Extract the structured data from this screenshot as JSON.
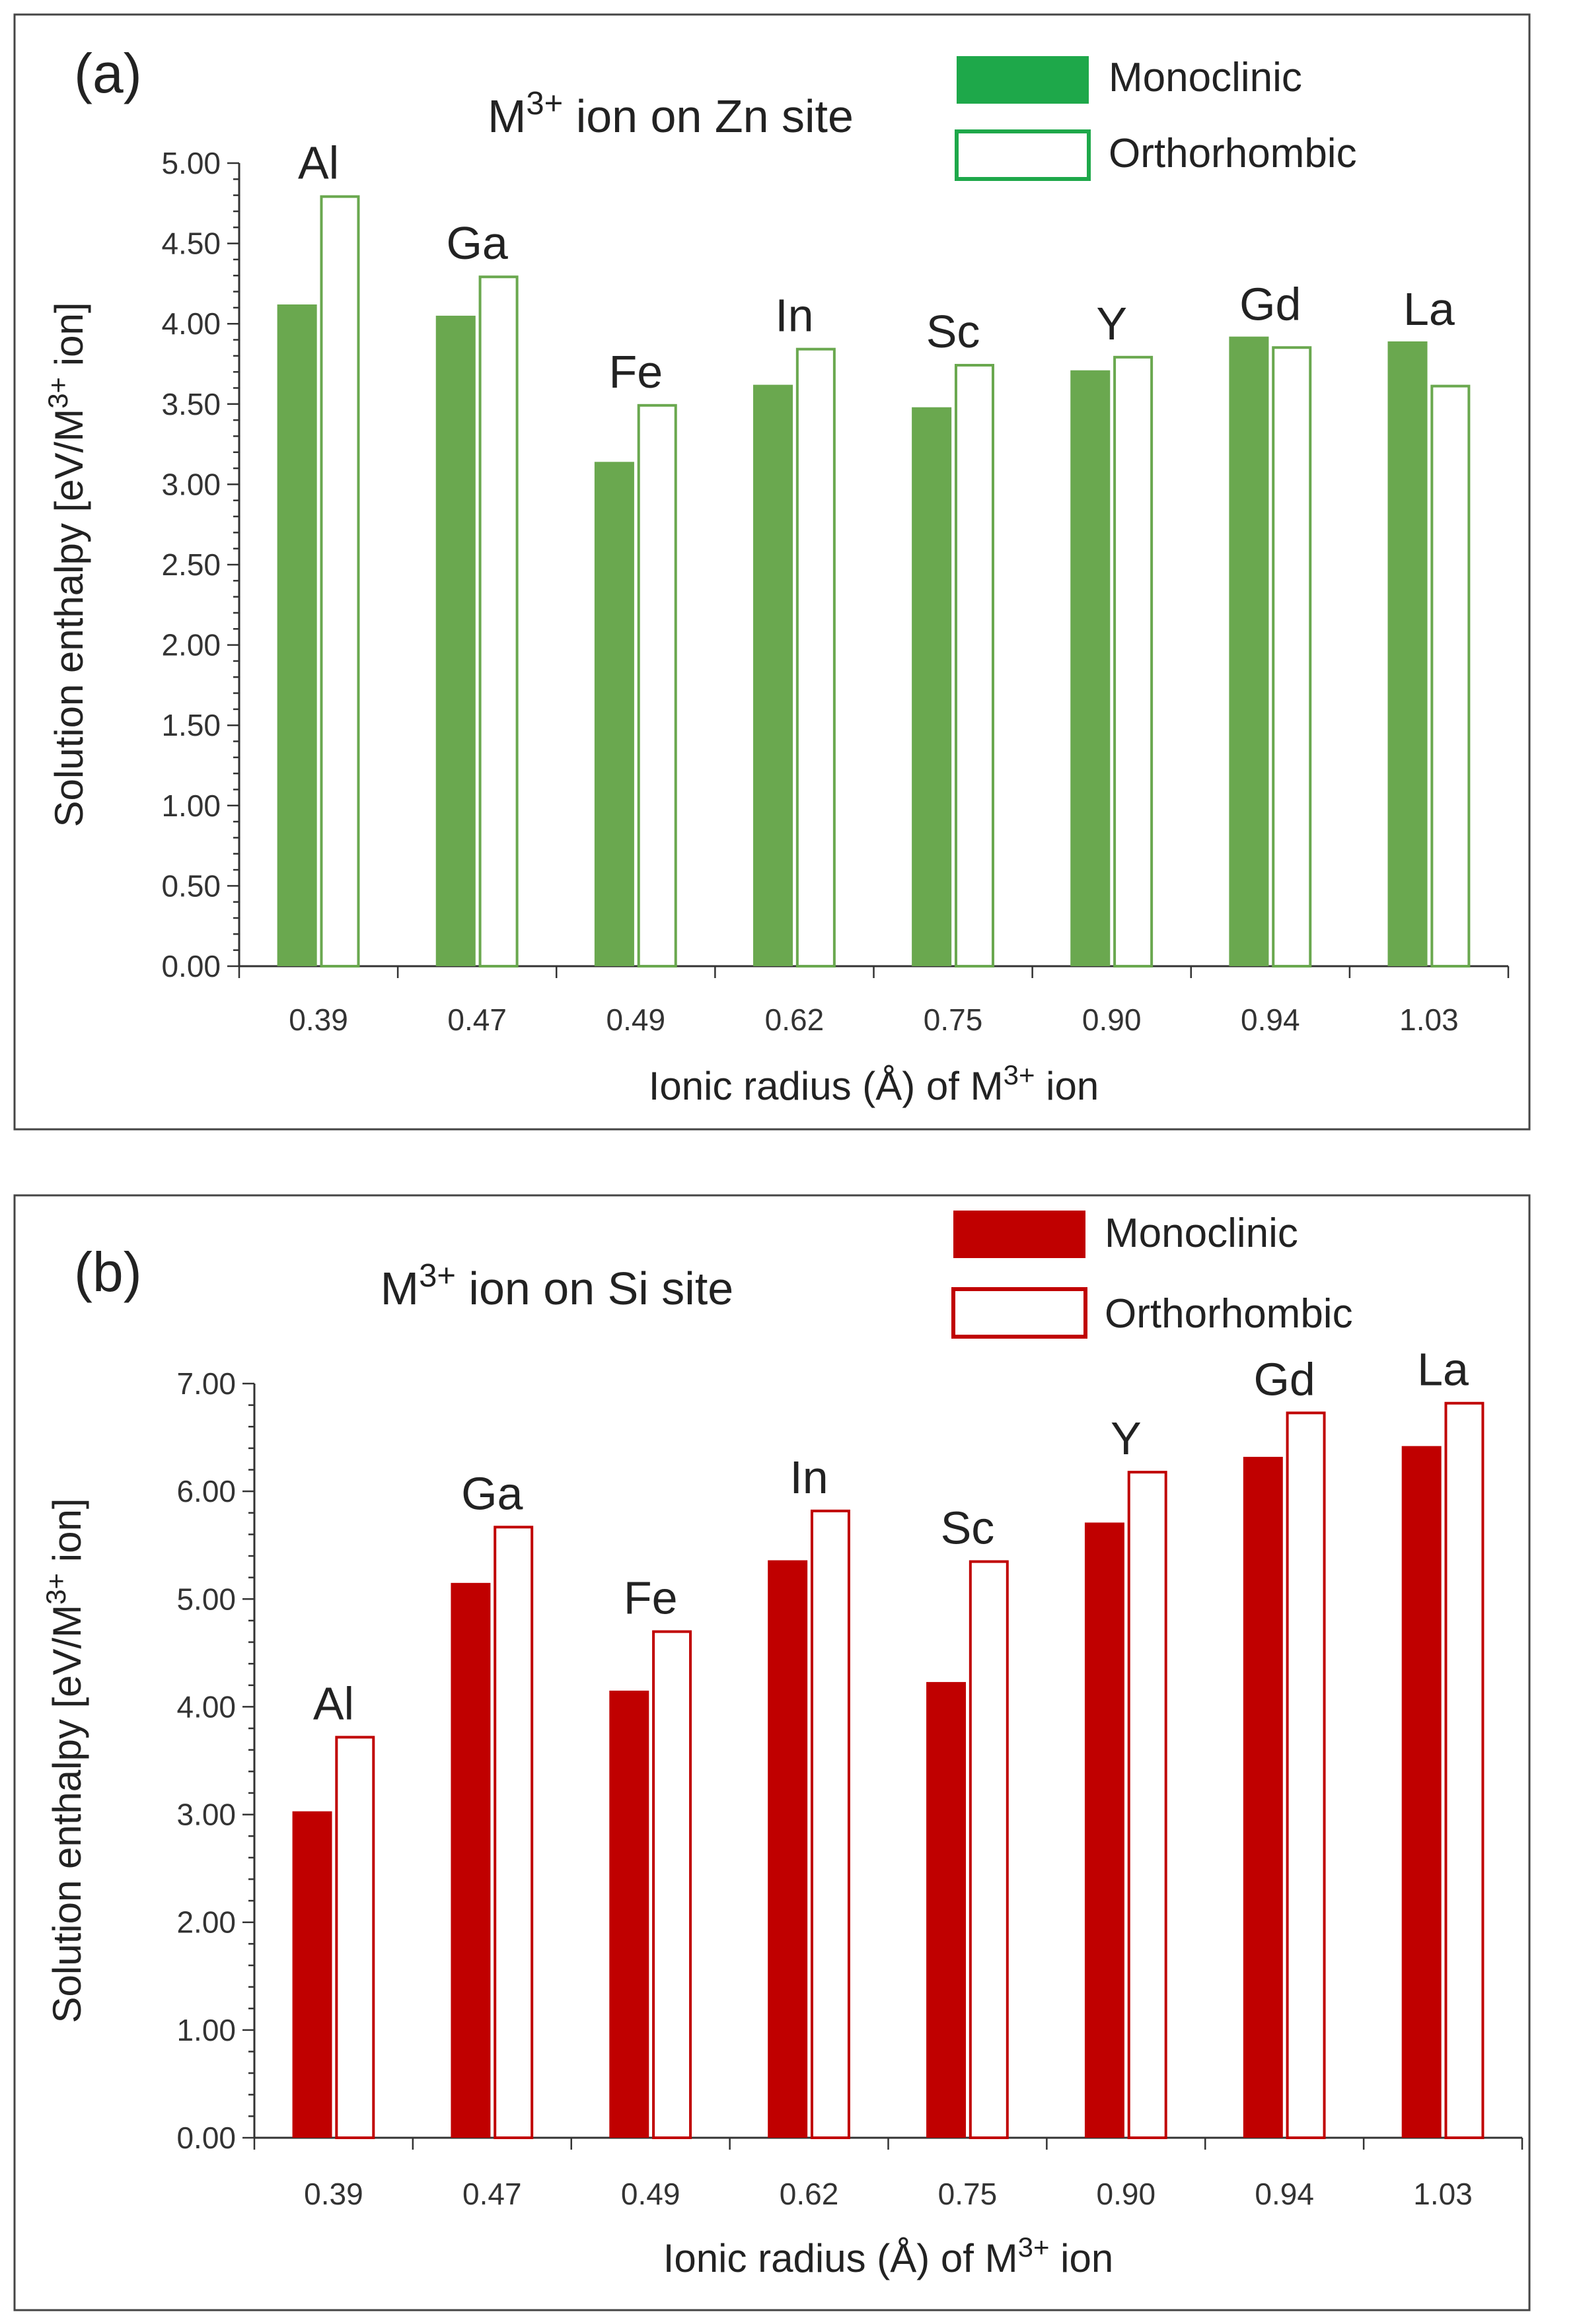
{
  "chart_data": [
    {
      "type": "bar",
      "panel": "(a)",
      "title_base": "M",
      "title_sup": "3+",
      "title_rest": " ion on Zn site",
      "categories": [
        "0.39",
        "0.47",
        "0.49",
        "0.62",
        "0.75",
        "0.90",
        "0.94",
        "1.03"
      ],
      "element_labels": [
        "Al",
        "Ga",
        "Fe",
        "In",
        "Sc",
        "Y",
        "Gd",
        "La"
      ],
      "series": [
        {
          "name": "Monoclinic",
          "filled": true,
          "values": [
            4.12,
            4.05,
            3.14,
            3.62,
            3.48,
            3.71,
            3.92,
            3.89
          ]
        },
        {
          "name": "Orthorhombic",
          "filled": false,
          "values": [
            4.8,
            4.3,
            3.5,
            3.85,
            3.75,
            3.8,
            3.86,
            3.62
          ]
        }
      ],
      "color": "#6aa84f",
      "legend_color": "#1ea84a",
      "xlabel_base": "Ionic radius (Å) of M",
      "xlabel_sup": "3+",
      "xlabel_rest": " ion",
      "ylabel_base": "Solution enthalpy [eV/M",
      "ylabel_sup": "3+",
      "ylabel_rest": " ion]",
      "ylim": [
        0,
        5
      ],
      "yticks": [
        "0.00",
        "0.50",
        "1.00",
        "1.50",
        "2.00",
        "2.50",
        "3.00",
        "3.50",
        "4.00",
        "4.50",
        "5.00"
      ],
      "legend_position": "top-right"
    },
    {
      "type": "bar",
      "panel": "(b)",
      "title_base": "M",
      "title_sup": "3+",
      "title_rest": " ion on Si site",
      "categories": [
        "0.39",
        "0.47",
        "0.49",
        "0.62",
        "0.75",
        "0.90",
        "0.94",
        "1.03"
      ],
      "element_labels": [
        "Al",
        "Ga",
        "Fe",
        "In",
        "Sc",
        "Y",
        "Gd",
        "La"
      ],
      "series": [
        {
          "name": "Monoclinic",
          "filled": true,
          "values": [
            3.03,
            5.15,
            4.15,
            5.36,
            4.23,
            5.71,
            6.32,
            6.42
          ]
        },
        {
          "name": "Orthorhombic",
          "filled": false,
          "values": [
            3.73,
            5.68,
            4.71,
            5.83,
            5.36,
            6.19,
            6.74,
            6.83
          ]
        }
      ],
      "color": "#c00000",
      "legend_color": "#c00000",
      "xlabel_base": "Ionic radius (Å) of M",
      "xlabel_sup": "3+",
      "xlabel_rest": " ion",
      "ylabel_base": "Solution enthalpy [eV/M",
      "ylabel_sup": "3+",
      "ylabel_rest": " ion]",
      "ylim": [
        0,
        7
      ],
      "yticks": [
        "0.00",
        "1.00",
        "2.00",
        "3.00",
        "4.00",
        "5.00",
        "6.00",
        "7.00"
      ],
      "legend_position": "top-right"
    }
  ]
}
